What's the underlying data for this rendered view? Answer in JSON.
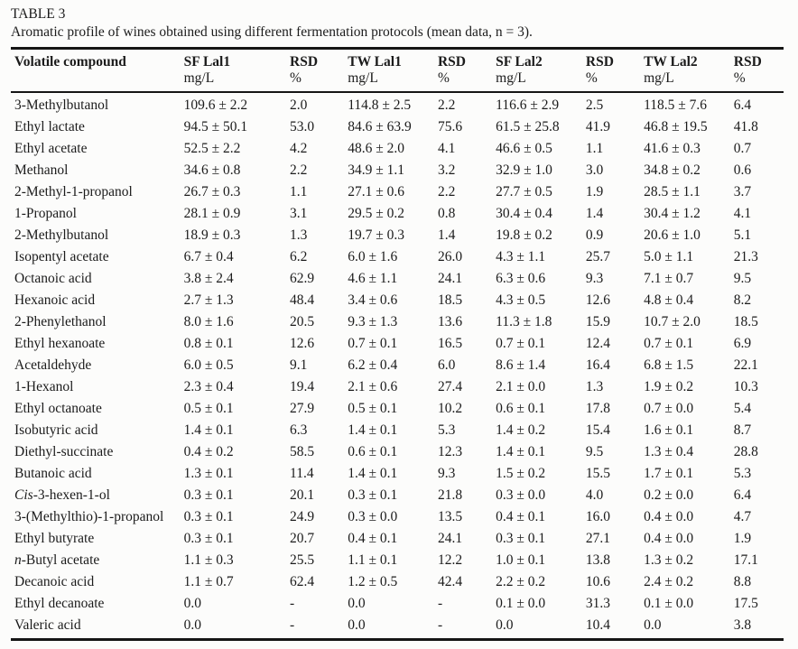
{
  "caption": {
    "label": "TABLE 3",
    "description": "Aromatic profile of wines obtained using different fermentation protocols (mean data, n = 3)."
  },
  "table": {
    "columns": [
      {
        "label": "Volatile compound",
        "unit": ""
      },
      {
        "label": "SF Lal1",
        "unit": "mg/L"
      },
      {
        "label": "RSD",
        "unit": "%"
      },
      {
        "label": "TW Lal1",
        "unit": "mg/L"
      },
      {
        "label": "RSD",
        "unit": "%"
      },
      {
        "label": "SF Lal2",
        "unit": "mg/L"
      },
      {
        "label": "RSD",
        "unit": "%"
      },
      {
        "label": "TW Lal2",
        "unit": "mg/L"
      },
      {
        "label": "RSD",
        "unit": "%"
      }
    ],
    "rows": [
      {
        "prefix": "",
        "name": "3-Methylbutanol",
        "values": [
          "109.6 ± 2.2",
          "2.0",
          "114.8 ± 2.5",
          "2.2",
          "116.6 ± 2.9",
          "2.5",
          "118.5 ± 7.6",
          "6.4"
        ]
      },
      {
        "prefix": "",
        "name": "Ethyl lactate",
        "values": [
          "94.5 ± 50.1",
          "53.0",
          "84.6 ± 63.9",
          "75.6",
          "61.5 ± 25.8",
          "41.9",
          "46.8 ± 19.5",
          "41.8"
        ]
      },
      {
        "prefix": "",
        "name": "Ethyl acetate",
        "values": [
          "52.5 ± 2.2",
          "4.2",
          "48.6 ± 2.0",
          "4.1",
          "46.6 ± 0.5",
          "1.1",
          "41.6 ± 0.3",
          "0.7"
        ]
      },
      {
        "prefix": "",
        "name": "Methanol",
        "values": [
          "34.6 ± 0.8",
          "2.2",
          "34.9 ± 1.1",
          "3.2",
          "32.9 ± 1.0",
          "3.0",
          "34.8 ± 0.2",
          "0.6"
        ]
      },
      {
        "prefix": "",
        "name": "2-Methyl-1-propanol",
        "values": [
          "26.7 ± 0.3",
          "1.1",
          "27.1 ± 0.6",
          "2.2",
          "27.7 ± 0.5",
          "1.9",
          "28.5 ± 1.1",
          "3.7"
        ]
      },
      {
        "prefix": "",
        "name": "1-Propanol",
        "values": [
          "28.1 ± 0.9",
          "3.1",
          "29.5 ± 0.2",
          "0.8",
          "30.4 ± 0.4",
          "1.4",
          "30.4 ± 1.2",
          "4.1"
        ]
      },
      {
        "prefix": "",
        "name": "2-Methylbutanol",
        "values": [
          "18.9 ± 0.3",
          "1.3",
          "19.7 ± 0.3",
          "1.4",
          "19.8 ± 0.2",
          "0.9",
          "20.6 ± 1.0",
          "5.1"
        ]
      },
      {
        "prefix": "",
        "name": "Isopentyl acetate",
        "values": [
          "6.7 ± 0.4",
          "6.2",
          "6.0 ± 1.6",
          "26.0",
          "4.3 ± 1.1",
          "25.7",
          "5.0 ± 1.1",
          "21.3"
        ]
      },
      {
        "prefix": "",
        "name": "Octanoic acid",
        "values": [
          "3.8 ± 2.4",
          "62.9",
          "4.6 ± 1.1",
          "24.1",
          "6.3 ± 0.6",
          "9.3",
          "7.1 ± 0.7",
          "9.5"
        ]
      },
      {
        "prefix": "",
        "name": "Hexanoic acid",
        "values": [
          "2.7 ± 1.3",
          "48.4",
          "3.4 ± 0.6",
          "18.5",
          "4.3 ± 0.5",
          "12.6",
          "4.8 ± 0.4",
          "8.2"
        ]
      },
      {
        "prefix": "",
        "name": "2-Phenylethanol",
        "values": [
          "8.0 ± 1.6",
          "20.5",
          "9.3 ± 1.3",
          "13.6",
          "11.3 ± 1.8",
          "15.9",
          "10.7 ± 2.0",
          "18.5"
        ]
      },
      {
        "prefix": "",
        "name": "Ethyl hexanoate",
        "values": [
          "0.8 ± 0.1",
          "12.6",
          "0.7 ± 0.1",
          "16.5",
          "0.7 ± 0.1",
          "12.4",
          "0.7 ± 0.1",
          "6.9"
        ]
      },
      {
        "prefix": "",
        "name": "Acetaldehyde",
        "values": [
          "6.0 ± 0.5",
          "9.1",
          "6.2 ± 0.4",
          "6.0",
          "8.6 ± 1.4",
          "16.4",
          "6.8 ± 1.5",
          "22.1"
        ]
      },
      {
        "prefix": "",
        "name": "1-Hexanol",
        "values": [
          "2.3 ± 0.4",
          "19.4",
          "2.1 ± 0.6",
          "27.4",
          "2.1 ± 0.0",
          "1.3",
          "1.9 ± 0.2",
          "10.3"
        ]
      },
      {
        "prefix": "",
        "name": "Ethyl octanoate",
        "values": [
          "0.5 ± 0.1",
          "27.9",
          "0.5 ± 0.1",
          "10.2",
          "0.6 ± 0.1",
          "17.8",
          "0.7 ± 0.0",
          "5.4"
        ]
      },
      {
        "prefix": "",
        "name": "Isobutyric acid",
        "values": [
          "1.4 ± 0.1",
          "6.3",
          "1.4 ± 0.1",
          "5.3",
          "1.4 ± 0.2",
          "15.4",
          "1.6 ± 0.1",
          "8.7"
        ]
      },
      {
        "prefix": "",
        "name": "Diethyl-succinate",
        "values": [
          "0.4 ± 0.2",
          "58.5",
          "0.6 ± 0.1",
          "12.3",
          "1.4 ± 0.1",
          "9.5",
          "1.3 ± 0.4",
          "28.8"
        ]
      },
      {
        "prefix": "",
        "name": "Butanoic acid",
        "values": [
          "1.3 ± 0.1",
          "11.4",
          "1.4 ± 0.1",
          "9.3",
          "1.5 ± 0.2",
          "15.5",
          "1.7 ± 0.1",
          "5.3"
        ]
      },
      {
        "prefix": "Cis",
        "name": "-3-hexen-1-ol",
        "values": [
          "0.3 ± 0.1",
          "20.1",
          "0.3 ± 0.1",
          "21.8",
          "0.3 ± 0.0",
          "4.0",
          "0.2 ± 0.0",
          "6.4"
        ]
      },
      {
        "prefix": "",
        "name": "3-(Methylthio)-1-propanol",
        "values": [
          "0.3 ± 0.1",
          "24.9",
          "0.3 ± 0.0",
          "13.5",
          "0.4 ± 0.1",
          "16.0",
          "0.4 ± 0.0",
          "4.7"
        ]
      },
      {
        "prefix": "",
        "name": "Ethyl butyrate",
        "values": [
          "0.3 ± 0.1",
          "20.7",
          "0.4 ± 0.1",
          "24.1",
          "0.3 ± 0.1",
          "27.1",
          "0.4 ± 0.0",
          "1.9"
        ]
      },
      {
        "prefix": "n",
        "name": "-Butyl acetate",
        "values": [
          "1.1 ± 0.3",
          "25.5",
          "1.1 ± 0.1",
          "12.2",
          "1.0 ± 0.1",
          "13.8",
          "1.3 ± 0.2",
          "17.1"
        ]
      },
      {
        "prefix": "",
        "name": "Decanoic acid",
        "values": [
          "1.1 ± 0.7",
          "62.4",
          "1.2 ± 0.5",
          "42.4",
          "2.2 ± 0.2",
          "10.6",
          "2.4 ± 0.2",
          "8.8"
        ]
      },
      {
        "prefix": "",
        "name": "Ethyl decanoate",
        "values": [
          "0.0",
          "-",
          "0.0",
          "-",
          "0.1 ± 0.0",
          "31.3",
          "0.1 ± 0.0",
          "17.5"
        ]
      },
      {
        "prefix": "",
        "name": "Valeric acid",
        "values": [
          "0.0",
          "-",
          "0.0",
          "-",
          "0.0",
          "10.4",
          "0.0",
          "3.8"
        ]
      }
    ]
  }
}
